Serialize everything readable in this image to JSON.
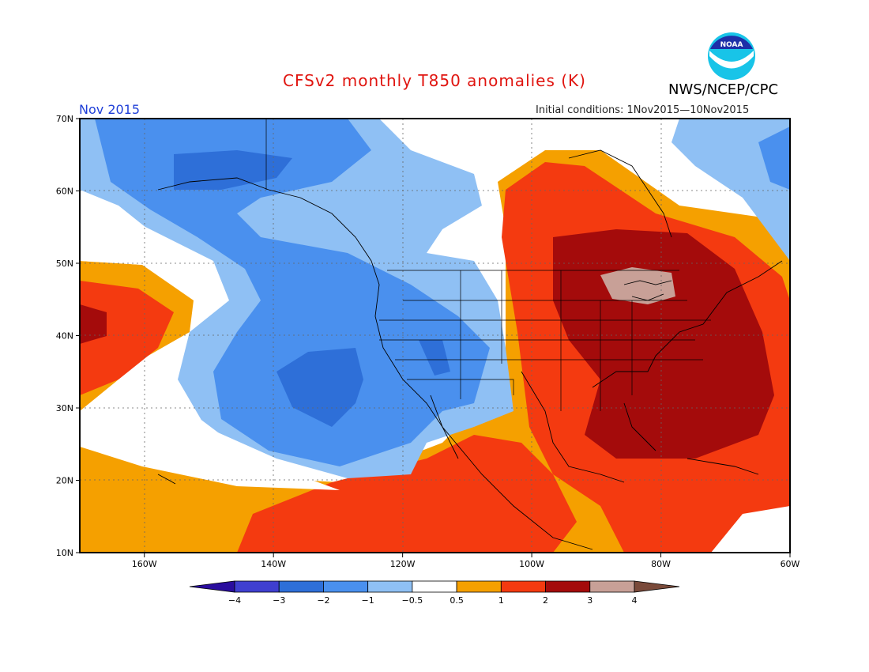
{
  "header": {
    "title": "CFSv2 monthly T850 anomalies (K)",
    "agency": "NWS/NCEP/CPC",
    "logo_text": "NOAA",
    "month": "Nov 2015",
    "initial_conditions": "Initial conditions: 1Nov2015—10Nov2015"
  },
  "map": {
    "lat_ticks": [
      "70N",
      "60N",
      "50N",
      "40N",
      "30N",
      "20N",
      "10N"
    ],
    "lon_ticks": [
      "160W",
      "140W",
      "120W",
      "100W",
      "80W",
      "60W"
    ],
    "lon_range": [
      -170,
      -60
    ],
    "lat_range": [
      10,
      70
    ]
  },
  "colorbar": {
    "labels": [
      "−4",
      "−3",
      "−2",
      "−1",
      "−0.5",
      "0.5",
      "1",
      "2",
      "3",
      "4"
    ],
    "colors": [
      "#2a0d9e",
      "#3f3fd0",
      "#2e6fd8",
      "#4a90ee",
      "#8fc0f4",
      "#ffffff",
      "#f5a000",
      "#f43a10",
      "#a40b0b",
      "#c8a097",
      "#7a4a3a"
    ]
  }
}
